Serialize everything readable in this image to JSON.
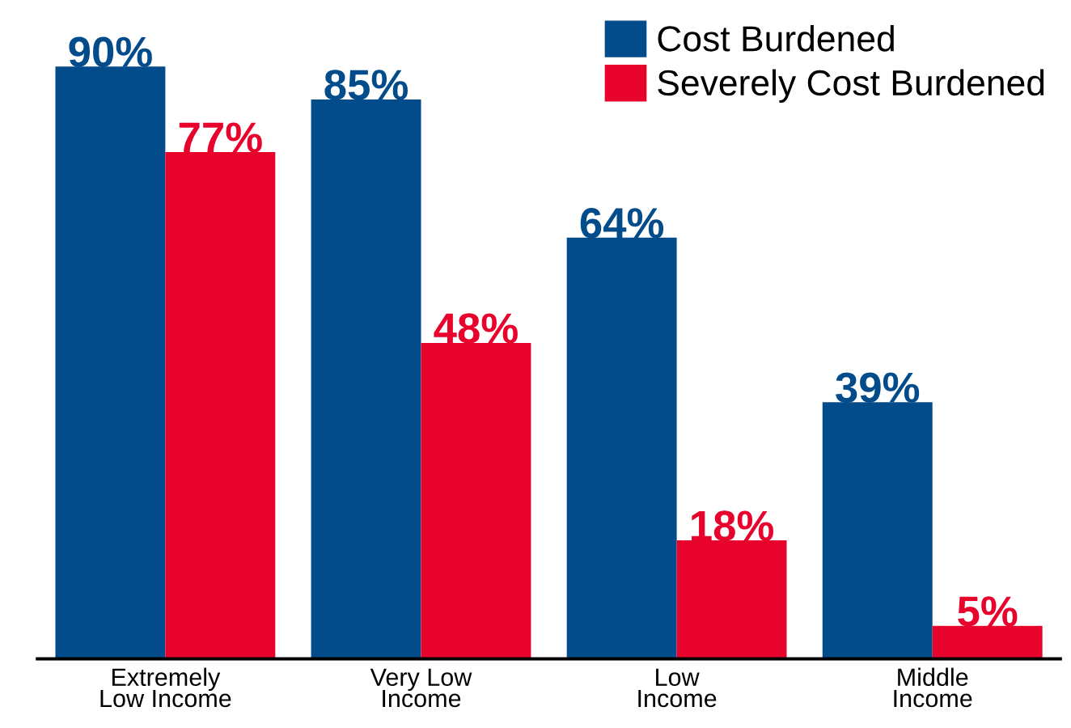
{
  "chart_data": {
    "type": "bar",
    "categories": [
      "Extremely\nLow Income",
      "Very Low\nIncome",
      "Low\nIncome",
      "Middle\nIncome"
    ],
    "series": [
      {
        "name": "Cost Burdened",
        "color": "#034c8c",
        "values": [
          90,
          85,
          64,
          39
        ],
        "value_labels": [
          "90%",
          "85%",
          "64%",
          "39%"
        ]
      },
      {
        "name": "Severely Cost Burdened",
        "color": "#e8032c",
        "values": [
          77,
          48,
          18,
          5
        ],
        "value_labels": [
          "77%",
          "48%",
          "18%",
          "5%"
        ]
      }
    ],
    "legend": "top right",
    "grid": false
  }
}
